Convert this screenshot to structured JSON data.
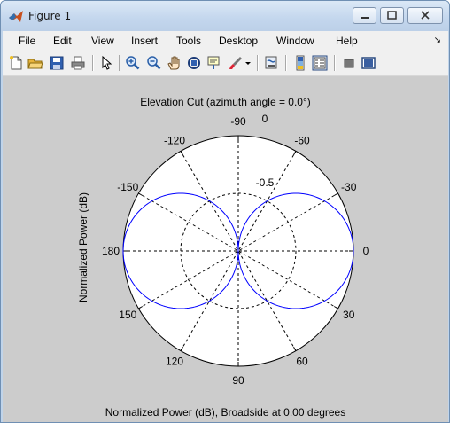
{
  "window": {
    "title": "Figure 1"
  },
  "menu": [
    "File",
    "Edit",
    "View",
    "Insert",
    "Tools",
    "Desktop",
    "Window",
    "Help"
  ],
  "toolbar_icons": [
    "new-figure-icon",
    "open-file-icon",
    "save-icon",
    "print-icon",
    "pointer-arrow-icon",
    "zoom-in-icon",
    "zoom-out-icon",
    "pan-hand-icon",
    "rotate-3d-icon",
    "data-cursor-icon",
    "brush-icon",
    "brush-dropdown-icon",
    "link-plot-icon",
    "colorbar-icon",
    "legend-icon",
    "hide-plot-tools-icon",
    "show-plot-tools-icon"
  ],
  "plot": {
    "title": "Elevation Cut (azimuth angle = 0.0°)",
    "ylabel": "Normalized Power (dB)",
    "xlabel": "Normalized Power (dB), Broadside at 0.00 degrees",
    "ring_label": "-0.5",
    "angle_labels": [
      {
        "deg": -90,
        "text": "-90"
      },
      {
        "deg": -60,
        "text": "-60"
      },
      {
        "deg": -30,
        "text": "-30"
      },
      {
        "deg": 0,
        "text": "0"
      },
      {
        "deg": 30,
        "text": "30"
      },
      {
        "deg": 60,
        "text": "60"
      },
      {
        "deg": 90,
        "text": "90"
      },
      {
        "deg": 120,
        "text": "120"
      },
      {
        "deg": 150,
        "text": "150"
      },
      {
        "deg": 180,
        "text": "180"
      },
      {
        "deg": -150,
        "text": "-150"
      },
      {
        "deg": -120,
        "text": "-120"
      }
    ],
    "top_extra_label": "0"
  },
  "chart_data": {
    "type": "polar",
    "title": "Elevation Cut (azimuth angle = 0.0°)",
    "xlabel": "Normalized Power (dB), Broadside at 0.00 degrees",
    "ylabel": "Normalized Power (dB)",
    "rlim": [
      -1,
      0
    ],
    "rticks": [
      -0.5
    ],
    "theta_ticks_deg": [
      -90,
      -60,
      -30,
      0,
      30,
      60,
      90,
      120,
      150,
      180,
      -150,
      -120
    ],
    "series": [
      {
        "color": "#0000ff",
        "pattern": "figure-eight |cos(theta)|, peaks at 0 and 180 degrees, nulls at ±90 degrees"
      }
    ],
    "grid": true
  }
}
